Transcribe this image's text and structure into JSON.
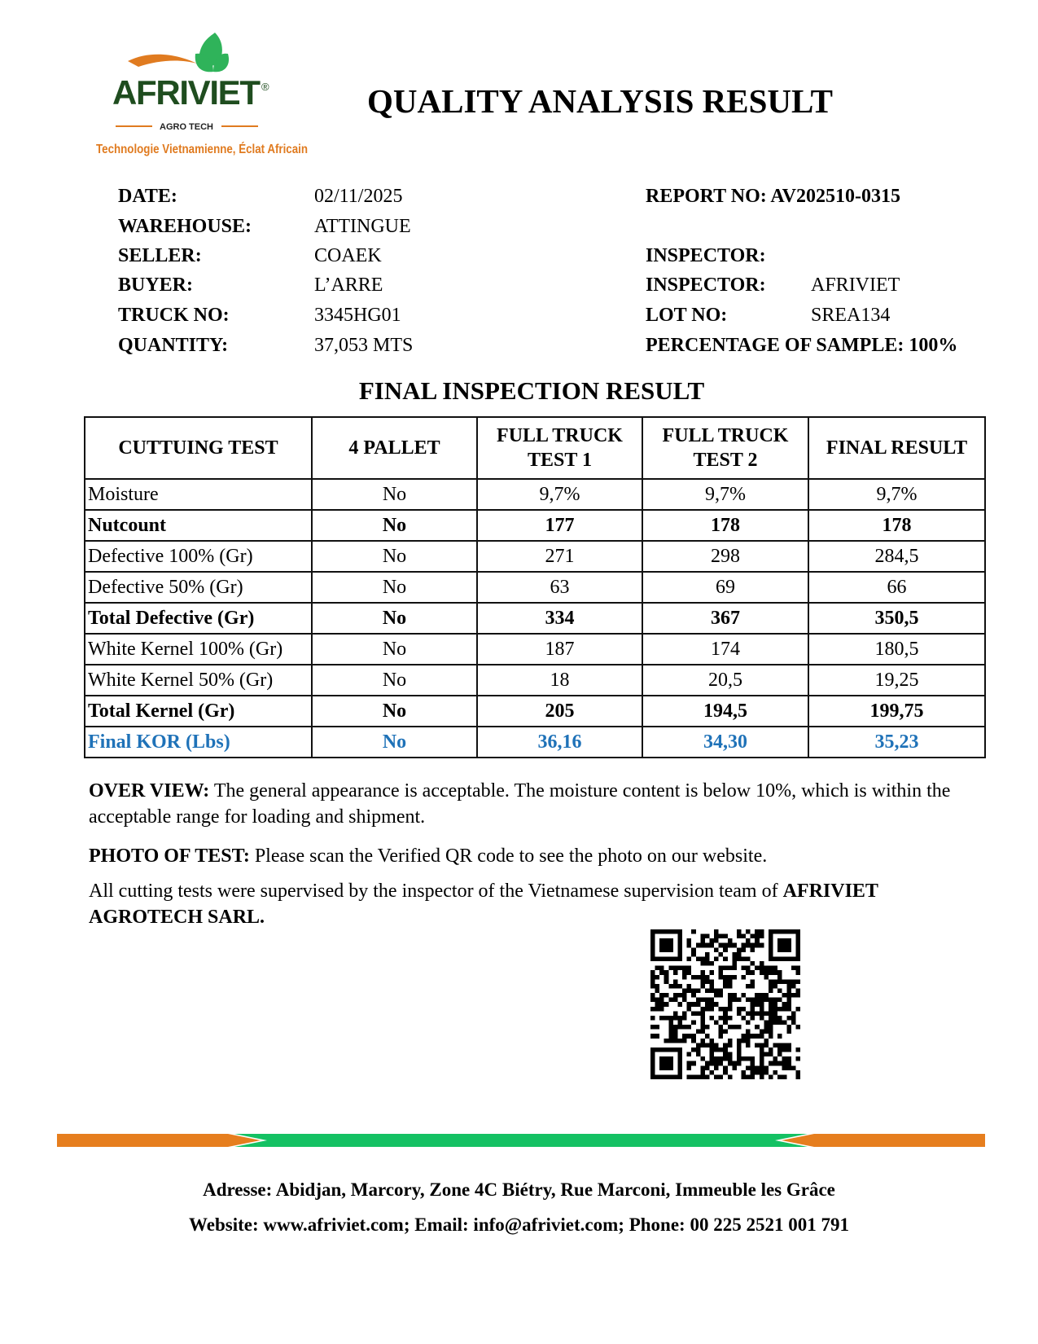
{
  "logo": {
    "brand": "AFRIVIET",
    "registered": "®",
    "sub": "AGRO TECH",
    "tagline": "Technologie Vietnamienne, Éclat Africain",
    "colors": {
      "green": "#1f4d1f",
      "leaf": "#2fb35a",
      "orange": "#e07b20"
    }
  },
  "title": "QUALITY ANALYSIS RESULT",
  "info_left": [
    {
      "label": "DATE:",
      "value": "02/11/2025"
    },
    {
      "label": "WAREHOUSE:",
      "value": "ATTINGUE"
    },
    {
      "label": "SELLER:",
      "value": "COAEK"
    },
    {
      "label": "BUYER:",
      "value": "L’ARRE"
    },
    {
      "label": "TRUCK NO:",
      "value": "3345HG01"
    },
    {
      "label": "QUANTITY:",
      "value": "37,053 MTS"
    }
  ],
  "info_right": {
    "report": "REPORT NO: AV202510-0315",
    "inspector1_label": "INSPECTOR:",
    "inspector2_label": "INSPECTOR:",
    "inspector2_value": "AFRIVIET",
    "lot_label": "LOT NO:",
    "lot_value": "SREA134",
    "percentage": "PERCENTAGE OF SAMPLE: 100%"
  },
  "final_title": "FINAL INSPECTION RESULT",
  "table": {
    "headers": [
      "CUTTUING TEST",
      "4 PALLET",
      "FULL TRUCK TEST 1",
      "FULL TRUCK TEST 2",
      "FINAL RESULT"
    ],
    "rows": [
      {
        "style": "normal",
        "cells": [
          "Moisture",
          "No",
          "9,7%",
          "9,7%",
          "9,7%"
        ]
      },
      {
        "style": "bold",
        "cells": [
          "Nutcount",
          "No",
          "177",
          "178",
          "178"
        ]
      },
      {
        "style": "normal",
        "cells": [
          "Defective 100% (Gr)",
          "No",
          "271",
          "298",
          "284,5"
        ]
      },
      {
        "style": "normal",
        "cells": [
          "Defective 50% (Gr)",
          "No",
          "63",
          "69",
          "66"
        ]
      },
      {
        "style": "bold",
        "cells": [
          "Total Defective (Gr)",
          "No",
          "334",
          "367",
          "350,5"
        ]
      },
      {
        "style": "normal",
        "cells": [
          "White Kernel 100% (Gr)",
          "No",
          "187",
          "174",
          "180,5"
        ]
      },
      {
        "style": "normal",
        "cells": [
          "White Kernel 50% (Gr)",
          "No",
          "18",
          "20,5",
          "19,25"
        ]
      },
      {
        "style": "bold",
        "cells": [
          "Total Kernel (Gr)",
          "No",
          "205",
          "194,5",
          "199,75"
        ]
      },
      {
        "style": "blue",
        "cells": [
          "Final KOR (Lbs)",
          "No",
          "36,16",
          "34,30",
          "35,23"
        ]
      }
    ],
    "accent_color": "#1f72b8"
  },
  "overview": {
    "label": "OVER VIEW:",
    "text": " The general appearance is acceptable. The moisture content is below 10%, which is within the acceptable range for loading and shipment."
  },
  "photo": {
    "label": "PHOTO OF TEST:",
    "text": " Please scan the Verified QR code to see the photo on our website."
  },
  "supervision": {
    "text": "All cutting tests were supervised by the inspector of the Vietnamese supervision team of ",
    "company": "AFRIVIET AGROTECH SARL."
  },
  "qr_icon": "qr-code",
  "footer": {
    "address": "Adresse: Abidjan, Marcory, Zone 4C Biétry, Rue Marconi, Immeuble les Grâce",
    "contact": "Website: www.afriviet.com; Email: info@afriviet.com; Phone: 00 225 2521 001 791",
    "bar_colors": {
      "orange": "#e67e1e",
      "green": "#14c163"
    }
  }
}
